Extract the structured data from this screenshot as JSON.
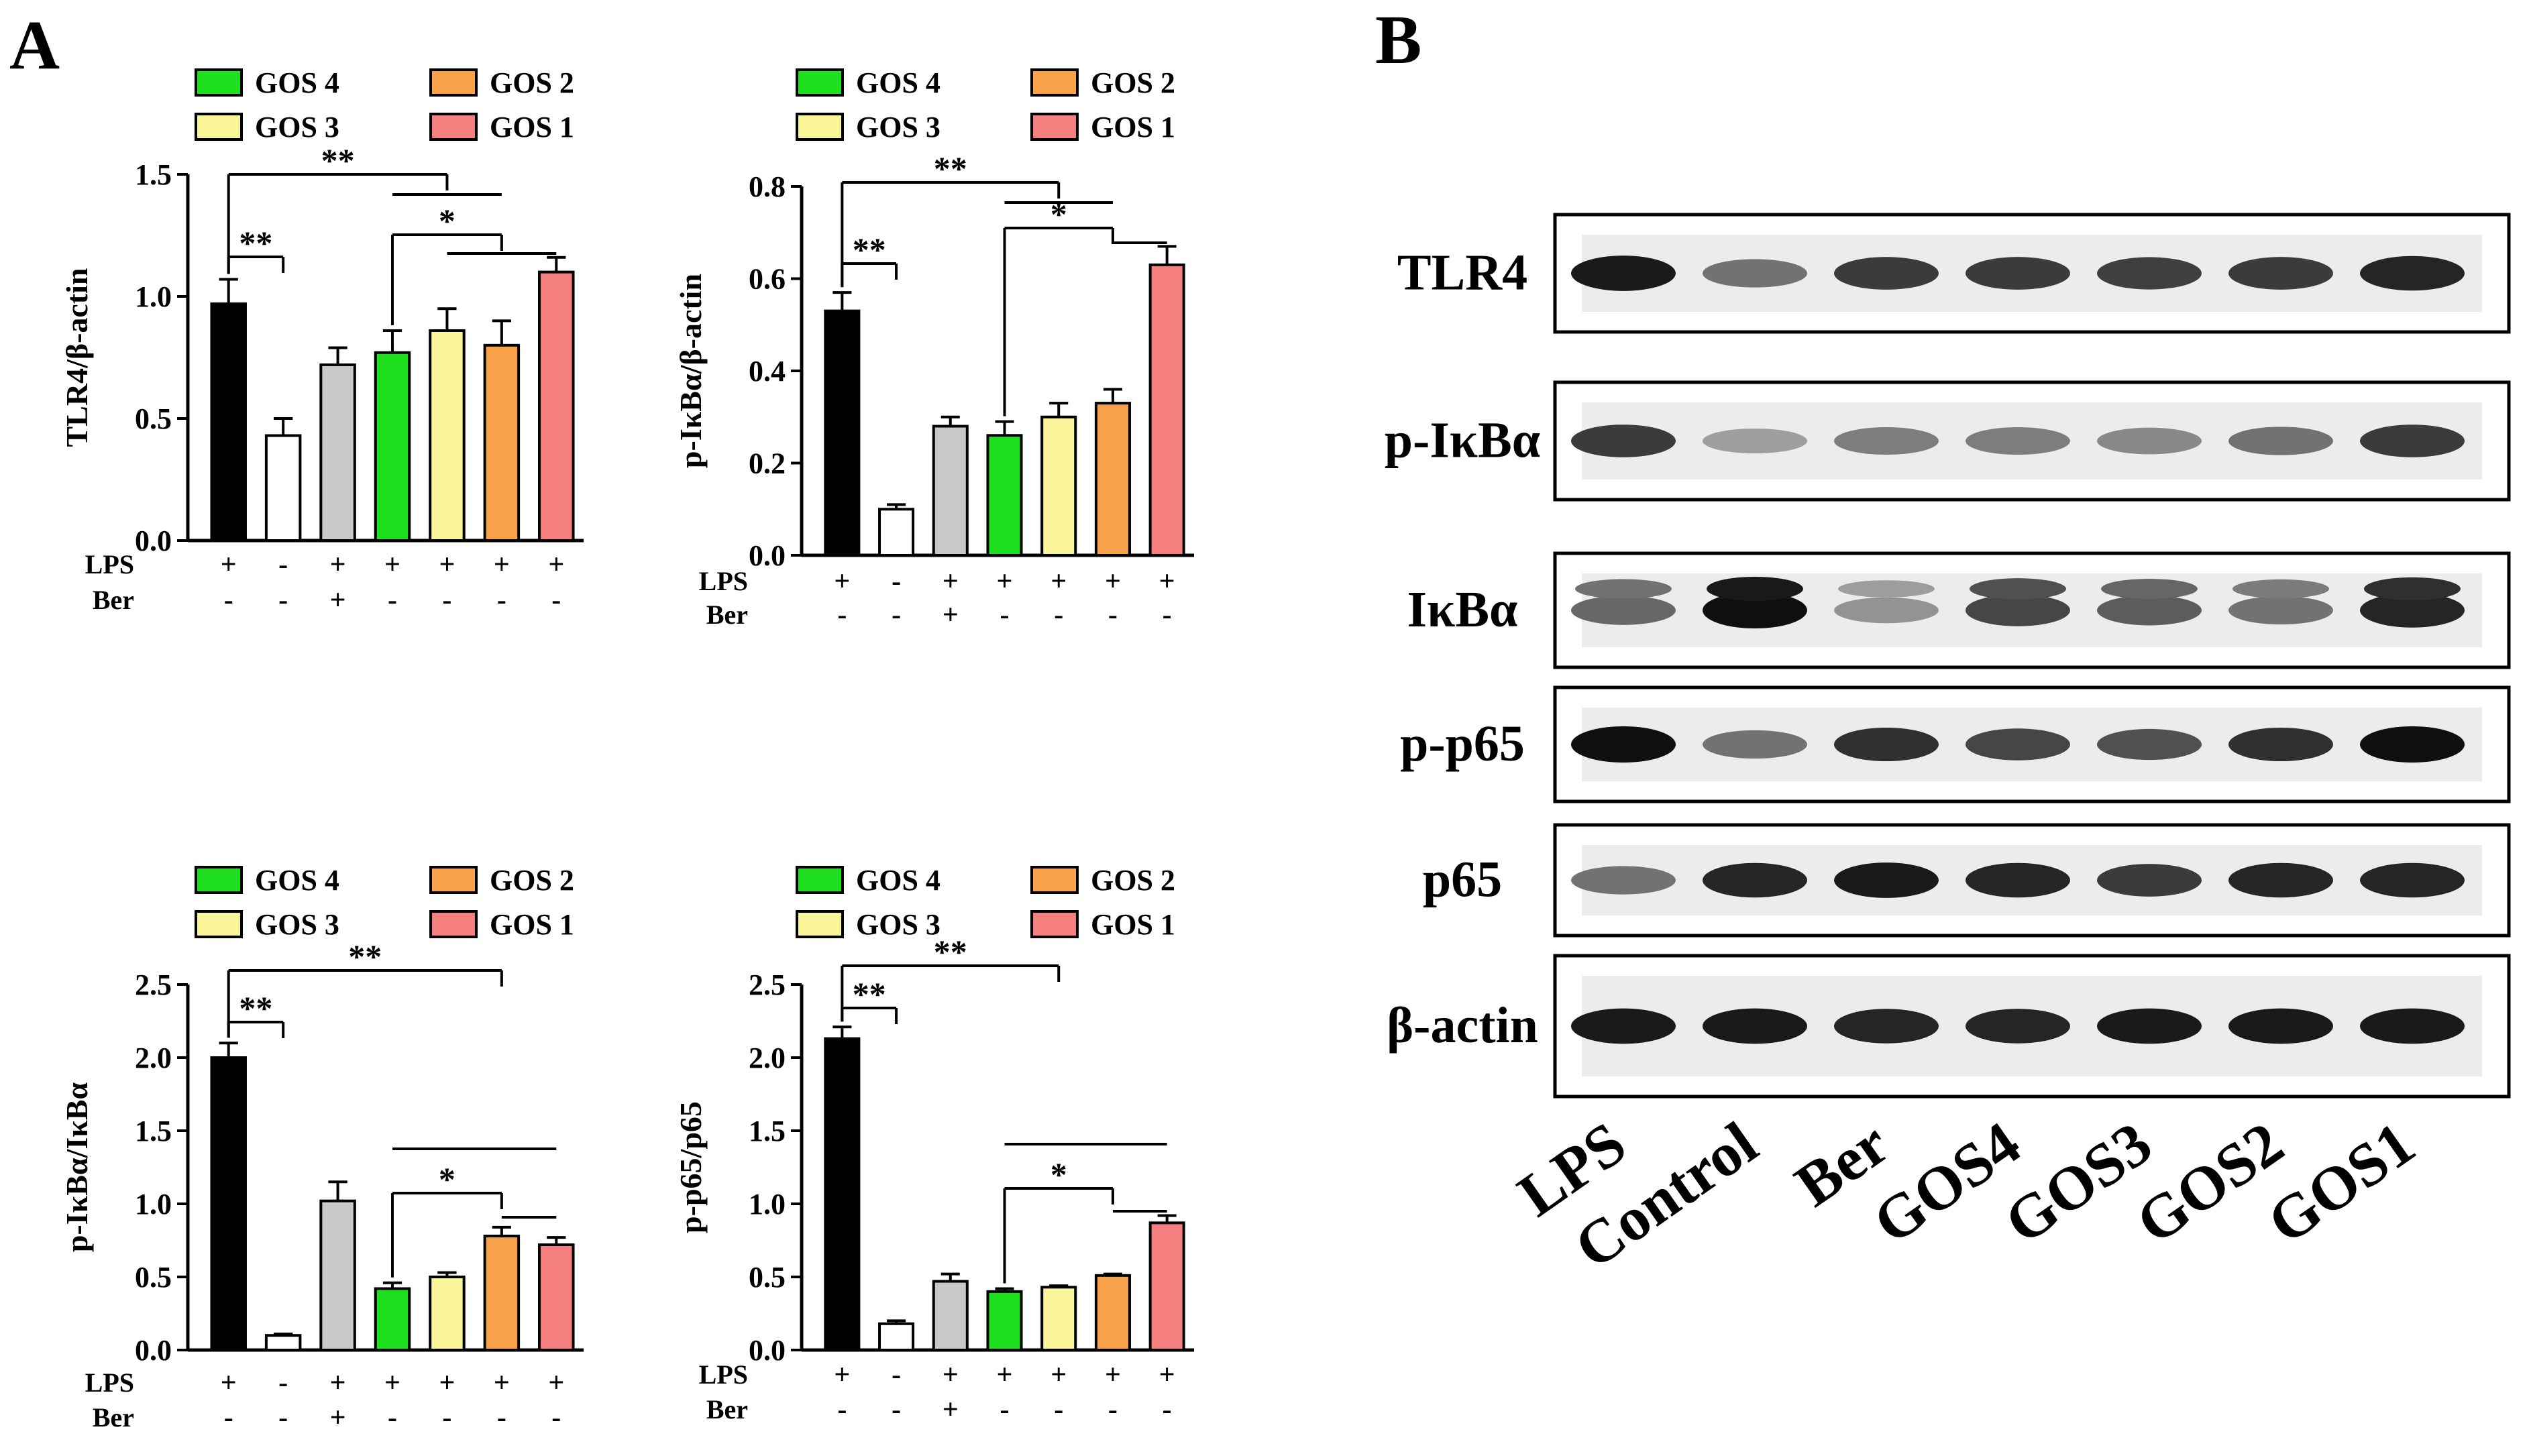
{
  "figure": {
    "panel_a": "A",
    "panel_b": "B"
  },
  "colors": {
    "lps": "#000000",
    "control": "#ffffff",
    "ber": "#c9c9c9",
    "gos4": "#1ee01e",
    "gos3": "#fbf59a",
    "gos2": "#f7a14a",
    "gos1": "#f57f7f"
  },
  "legend_labels": [
    "GOS 4",
    "GOS 3",
    "GOS 2",
    "GOS 1"
  ],
  "treatment_rows": {
    "lps_label": "LPS",
    "ber_label": "Ber",
    "lps": [
      "+",
      "-",
      "+",
      "+",
      "+",
      "+",
      "+"
    ],
    "ber": [
      "-",
      "-",
      "+",
      "-",
      "-",
      "-",
      "-"
    ]
  },
  "chart_data": [
    {
      "type": "bar",
      "ylabel": "TLR4/β-actin",
      "ylim": [
        0,
        1.5
      ],
      "yticks": [
        "0.0",
        "0.5",
        "1.0",
        "1.5"
      ],
      "categories": [
        "LPS",
        "Control",
        "Ber",
        "GOS 4",
        "GOS 3",
        "GOS 2",
        "GOS 1"
      ],
      "values": [
        0.97,
        0.43,
        0.72,
        0.77,
        0.86,
        0.8,
        1.1
      ],
      "errors": [
        0.1,
        0.07,
        0.07,
        0.09,
        0.09,
        0.1,
        0.06
      ],
      "annotations": [
        "**",
        "**",
        "*"
      ]
    },
    {
      "type": "bar",
      "ylabel": "p-IκBα/β-actin",
      "ylim": [
        0,
        0.8
      ],
      "yticks": [
        "0.0",
        "0.2",
        "0.4",
        "0.6",
        "0.8"
      ],
      "categories": [
        "LPS",
        "Control",
        "Ber",
        "GOS 4",
        "GOS 3",
        "GOS 2",
        "GOS 1"
      ],
      "values": [
        0.53,
        0.1,
        0.28,
        0.26,
        0.3,
        0.33,
        0.63
      ],
      "errors": [
        0.04,
        0.01,
        0.02,
        0.03,
        0.03,
        0.03,
        0.04
      ],
      "annotations": [
        "**",
        "**",
        "*"
      ]
    },
    {
      "type": "bar",
      "ylabel": "p-IκBα/IκBα",
      "ylim": [
        0,
        2.5
      ],
      "yticks": [
        "0.0",
        "0.5",
        "1.0",
        "1.5",
        "2.0",
        "2.5"
      ],
      "categories": [
        "LPS",
        "Control",
        "Ber",
        "GOS 4",
        "GOS 3",
        "GOS 2",
        "GOS 1"
      ],
      "values": [
        2.0,
        0.1,
        1.02,
        0.42,
        0.5,
        0.78,
        0.72
      ],
      "errors": [
        0.1,
        0.01,
        0.13,
        0.04,
        0.03,
        0.06,
        0.05
      ],
      "annotations": [
        "**",
        "**",
        "*"
      ]
    },
    {
      "type": "bar",
      "ylabel": "p-p65/p65",
      "ylim": [
        0,
        2.5
      ],
      "yticks": [
        "0.0",
        "0.5",
        "1.0",
        "1.5",
        "2.0",
        "2.5"
      ],
      "categories": [
        "LPS",
        "Control",
        "Ber",
        "GOS 4",
        "GOS 3",
        "GOS 2",
        "GOS 1"
      ],
      "values": [
        2.13,
        0.18,
        0.47,
        0.4,
        0.43,
        0.51,
        0.87
      ],
      "errors": [
        0.08,
        0.02,
        0.05,
        0.02,
        0.01,
        0.01,
        0.05
      ],
      "annotations": [
        "**",
        "**",
        "*"
      ]
    }
  ],
  "blot": {
    "proteins": [
      "TLR4",
      "p-IκBα",
      "IκBα",
      "p-p65",
      "p65",
      "β-actin"
    ],
    "lanes": [
      "LPS",
      "Control",
      "Ber",
      "GOS4",
      "GOS3",
      "GOS2",
      "GOS1"
    ],
    "band_intensity": [
      [
        0.95,
        0.55,
        0.8,
        0.8,
        0.78,
        0.8,
        0.9
      ],
      [
        0.8,
        0.35,
        0.5,
        0.5,
        0.45,
        0.55,
        0.8
      ],
      [
        0.6,
        1.0,
        0.4,
        0.75,
        0.65,
        0.55,
        0.9
      ],
      [
        1.0,
        0.55,
        0.85,
        0.75,
        0.7,
        0.85,
        1.0
      ],
      [
        0.55,
        0.9,
        0.95,
        0.9,
        0.8,
        0.9,
        0.9
      ],
      [
        0.95,
        0.95,
        0.9,
        0.9,
        0.95,
        0.95,
        0.95
      ]
    ]
  }
}
